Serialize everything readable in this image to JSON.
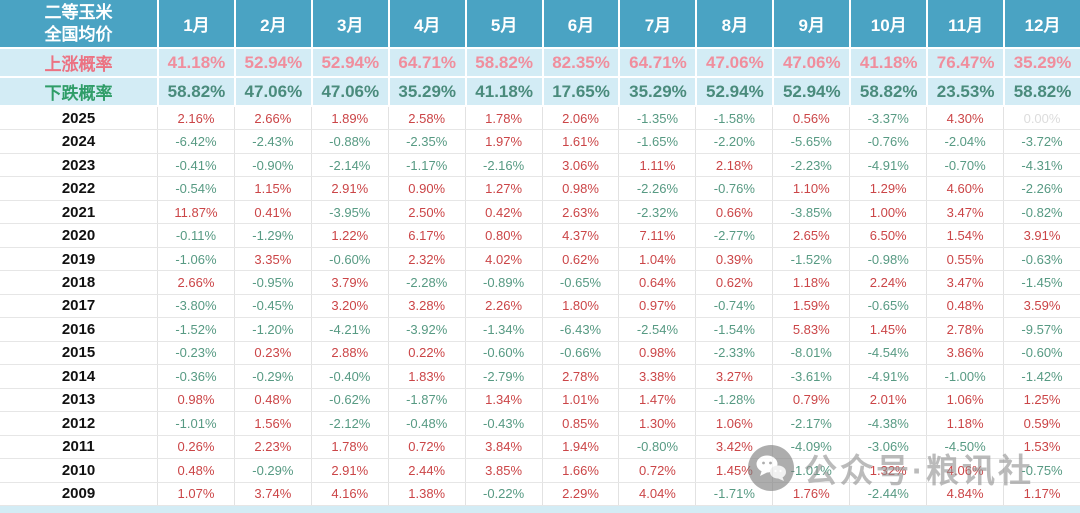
{
  "chart_data": {
    "type": "table",
    "corner_label": [
      "二等玉米",
      "全国均价"
    ],
    "months": [
      "1月",
      "2月",
      "3月",
      "4月",
      "5月",
      "6月",
      "7月",
      "8月",
      "9月",
      "10月",
      "11月",
      "12月"
    ],
    "rise_row": {
      "label": "上涨概率",
      "values": [
        "41.18%",
        "52.94%",
        "52.94%",
        "64.71%",
        "58.82%",
        "82.35%",
        "64.71%",
        "47.06%",
        "47.06%",
        "41.18%",
        "76.47%",
        "35.29%"
      ]
    },
    "fall_row": {
      "label": "下跌概率",
      "values": [
        "58.82%",
        "47.06%",
        "47.06%",
        "35.29%",
        "41.18%",
        "17.65%",
        "35.29%",
        "52.94%",
        "52.94%",
        "58.82%",
        "23.53%",
        "58.82%"
      ]
    },
    "years": [
      {
        "year": "2025",
        "values": [
          "2.16%",
          "2.66%",
          "1.89%",
          "2.58%",
          "1.78%",
          "2.06%",
          "-1.35%",
          "-1.58%",
          "0.56%",
          "-3.37%",
          "4.30%",
          "0.00%"
        ]
      },
      {
        "year": "2024",
        "values": [
          "-6.42%",
          "-2.43%",
          "-0.88%",
          "-2.35%",
          "1.97%",
          "1.61%",
          "-1.65%",
          "-2.20%",
          "-5.65%",
          "-0.76%",
          "-2.04%",
          "-3.72%"
        ]
      },
      {
        "year": "2023",
        "values": [
          "-0.41%",
          "-0.90%",
          "-2.14%",
          "-1.17%",
          "-2.16%",
          "3.06%",
          "1.11%",
          "2.18%",
          "-2.23%",
          "-4.91%",
          "-0.70%",
          "-4.31%"
        ]
      },
      {
        "year": "2022",
        "values": [
          "-0.54%",
          "1.15%",
          "2.91%",
          "0.90%",
          "1.27%",
          "0.98%",
          "-2.26%",
          "-0.76%",
          "1.10%",
          "1.29%",
          "4.60%",
          "-2.26%"
        ]
      },
      {
        "year": "2021",
        "values": [
          "11.87%",
          "0.41%",
          "-3.95%",
          "2.50%",
          "0.42%",
          "2.63%",
          "-2.32%",
          "0.66%",
          "-3.85%",
          "1.00%",
          "3.47%",
          "-0.82%"
        ]
      },
      {
        "year": "2020",
        "values": [
          "-0.11%",
          "-1.29%",
          "1.22%",
          "6.17%",
          "0.80%",
          "4.37%",
          "7.11%",
          "-2.77%",
          "2.65%",
          "6.50%",
          "1.54%",
          "3.91%"
        ]
      },
      {
        "year": "2019",
        "values": [
          "-1.06%",
          "3.35%",
          "-0.60%",
          "2.32%",
          "4.02%",
          "0.62%",
          "1.04%",
          "0.39%",
          "-1.52%",
          "-0.98%",
          "0.55%",
          "-0.63%"
        ]
      },
      {
        "year": "2018",
        "values": [
          "2.66%",
          "-0.95%",
          "3.79%",
          "-2.28%",
          "-0.89%",
          "-0.65%",
          "0.64%",
          "0.62%",
          "1.18%",
          "2.24%",
          "3.47%",
          "-1.45%"
        ]
      },
      {
        "year": "2017",
        "values": [
          "-3.80%",
          "-0.45%",
          "3.20%",
          "3.28%",
          "2.26%",
          "1.80%",
          "0.97%",
          "-0.74%",
          "1.59%",
          "-0.65%",
          "0.48%",
          "3.59%"
        ]
      },
      {
        "year": "2016",
        "values": [
          "-1.52%",
          "-1.20%",
          "-4.21%",
          "-3.92%",
          "-1.34%",
          "-6.43%",
          "-2.54%",
          "-1.54%",
          "5.83%",
          "1.45%",
          "2.78%",
          "-9.57%"
        ]
      },
      {
        "year": "2015",
        "values": [
          "-0.23%",
          "0.23%",
          "2.88%",
          "0.22%",
          "-0.60%",
          "-0.66%",
          "0.98%",
          "-2.33%",
          "-8.01%",
          "-4.54%",
          "3.86%",
          "-0.60%"
        ]
      },
      {
        "year": "2014",
        "values": [
          "-0.36%",
          "-0.29%",
          "-0.40%",
          "1.83%",
          "-2.79%",
          "2.78%",
          "3.38%",
          "3.27%",
          "-3.61%",
          "-4.91%",
          "-1.00%",
          "-1.42%"
        ]
      },
      {
        "year": "2013",
        "values": [
          "0.98%",
          "0.48%",
          "-0.62%",
          "-1.87%",
          "1.34%",
          "1.01%",
          "1.47%",
          "-1.28%",
          "0.79%",
          "2.01%",
          "1.06%",
          "1.25%"
        ]
      },
      {
        "year": "2012",
        "values": [
          "-1.01%",
          "1.56%",
          "-2.12%",
          "-0.48%",
          "-0.43%",
          "0.85%",
          "1.30%",
          "1.06%",
          "-2.17%",
          "-4.38%",
          "1.18%",
          "0.59%"
        ]
      },
      {
        "year": "2011",
        "values": [
          "0.26%",
          "2.23%",
          "1.78%",
          "0.72%",
          "3.84%",
          "1.94%",
          "-0.80%",
          "3.42%",
          "-4.09%",
          "-3.06%",
          "-4.50%",
          "1.53%"
        ]
      },
      {
        "year": "2010",
        "values": [
          "0.48%",
          "-0.29%",
          "2.91%",
          "2.44%",
          "3.85%",
          "1.66%",
          "0.72%",
          "1.45%",
          "-1.01%",
          "1.32%",
          "4.06%",
          "-0.75%"
        ]
      },
      {
        "year": "2009",
        "values": [
          "1.07%",
          "3.74%",
          "4.16%",
          "1.38%",
          "-0.22%",
          "2.29%",
          "4.04%",
          "-1.71%",
          "1.76%",
          "-2.44%",
          "4.84%",
          "1.17%"
        ]
      }
    ]
  },
  "watermark": {
    "text": "公众号·粮讯社",
    "icon": "wechat-icon"
  },
  "colors": {
    "header_bg": "#4aa3c3",
    "prob_bg": "#d3ecf5",
    "rise_label": "#ec7282",
    "rise_value": "#f08e9d",
    "fall_label": "#2f9d68",
    "fall_value": "#4a8b7c",
    "up_red": "#cb4547",
    "down_green": "#579a83",
    "zero_gray": "#dcdcdc",
    "row_border": "#e6e6e6",
    "col_border": "#e2e2e2"
  }
}
